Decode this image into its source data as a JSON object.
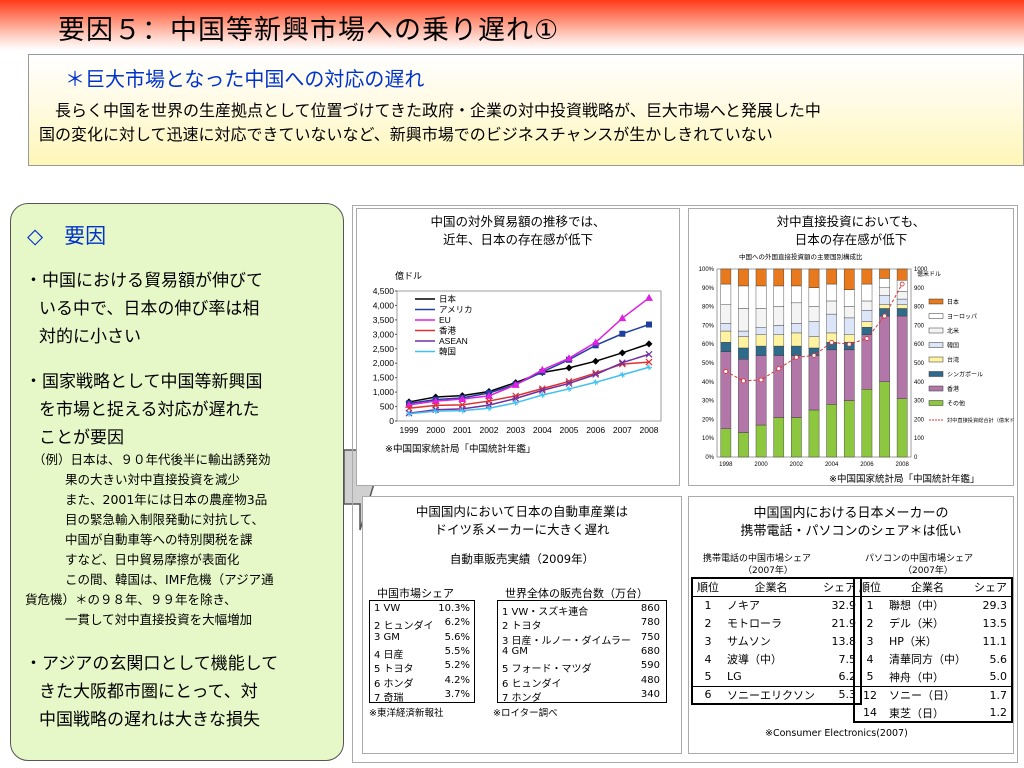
{
  "header": {
    "title": "要因５：中国等新興市場への乗り遅れ①"
  },
  "summary": {
    "heading": "＊巨大市場となった中国への対応の遅れ",
    "line1": "長らく中国を世界の生産拠点として位置づけてきた政府・企業の対中投資戦略が、巨大市場へと発展した中",
    "line2": "国の変化に対して迅速に対応できていないなど、新興市場でのビジネスチャンスが生かしきれていない"
  },
  "factors": {
    "heading": "◇　要因",
    "item1": [
      "・中国における貿易額が伸びて",
      "いる中で、日本の伸び率は相",
      "対的に小さい"
    ],
    "item2": [
      "・国家戦略として中国等新興国",
      "を市場と捉える対応が遅れた",
      "ことが要因"
    ],
    "example": [
      "（例）日本は、９０年代後半に輸出誘発効",
      "果の大きい対中直接投資を減少",
      "また、2001年には日本の農産物3品",
      "目の緊急輸入制限発動に対抗して、",
      "中国が自動車等への特別関税を課",
      "すなど、日中貿易摩擦が表面化",
      "この間、韓国は、IMF危機（アジア通",
      "貨危機）＊の９８年、９９年を除き、",
      "一貫して対中直接投資を大幅増加"
    ],
    "item3": [
      "・アジアの玄関口として機能して",
      "きた大阪都市圏にとって、対",
      "中国戦略の遅れは大きな損失"
    ]
  },
  "trade_panel": {
    "title1": "中国の対外貿易額の推移では、",
    "title2": "近年、日本の存在感が低下",
    "unit": "億ドル",
    "source": "※中国国家統計局「中国統計年鑑」"
  },
  "fdi_panel": {
    "title1": "対中直接投資においても、",
    "title2": "日本の存在感が低下",
    "subtitle": "中国への外国直接投資額の主要国別構成比",
    "right_unit": "億米ドル",
    "source": "※中国国家統計局「中国統計年鑑」"
  },
  "auto_panel": {
    "title1": "中国国内において日本の自動車産業は",
    "title2": "ドイツ系メーカーに大きく遅れ",
    "subtitle": "自動車販売実績（2009年）",
    "china_head": "中国市場シェア",
    "world_head": "世界全体の販売台数（万台）",
    "china_rows": [
      [
        "1 VW",
        "10.3%"
      ],
      [
        "2 ヒュンダイ",
        "6.2%"
      ],
      [
        "3 GM",
        "5.6%"
      ],
      [
        "4 日産",
        "5.5%"
      ],
      [
        "5 トヨタ",
        "5.2%"
      ],
      [
        "6 ホンダ",
        "4.2%"
      ],
      [
        "7 奇瑞",
        "3.7%"
      ]
    ],
    "world_rows": [
      [
        "1 VW・スズキ連合",
        "860"
      ],
      [
        "2 トヨタ",
        "780"
      ],
      [
        "3 日産・ルノー・ダイムラー",
        "750"
      ],
      [
        "4 GM",
        "680"
      ],
      [
        "5 フォード・マツダ",
        "590"
      ],
      [
        "6 ヒュンダイ",
        "480"
      ],
      [
        "7 ホンダ",
        "340"
      ]
    ],
    "source1": "※東洋経済新報社",
    "source2": "※ロイター調べ"
  },
  "share_panel": {
    "title1": "中国国内における日本メーカーの",
    "title2": "携帯電話・パソコンのシェア＊は低い",
    "phone_caption1": "携帯電話の中国市場シェア",
    "phone_caption2": "（2007年）",
    "pc_caption1": "パソコンの中国市場シェア",
    "pc_caption2": "（2007年）",
    "headers": [
      "順位",
      "企業名",
      "シェア"
    ],
    "phone_rows": [
      [
        "1",
        "ノキア",
        "32.9"
      ],
      [
        "2",
        "モトローラ",
        "21.9"
      ],
      [
        "3",
        "サムソン",
        "13.8"
      ],
      [
        "4",
        "波導（中）",
        "7.5"
      ],
      [
        "5",
        "LG",
        "6.2"
      ],
      [
        "6",
        "ソニーエリクソン",
        "5.3"
      ]
    ],
    "pc_rows": [
      [
        "1",
        "聯想（中）",
        "29.3"
      ],
      [
        "2",
        "デル（米）",
        "13.5"
      ],
      [
        "3",
        "HP（米）",
        "11.1"
      ],
      [
        "4",
        "清華同方（中）",
        "5.6"
      ],
      [
        "5",
        "神舟（中）",
        "5.0"
      ],
      [
        "12",
        "ソニー（日）",
        "1.7"
      ],
      [
        "14",
        "東芝（日）",
        "1.2"
      ]
    ],
    "source": "※Consumer Electronics(2007)"
  },
  "chart_data": [
    {
      "type": "line",
      "title": "中国の対外貿易額の推移では、近年、日本の存在感が低下",
      "ylabel": "億ドル",
      "ylim": [
        0,
        4500
      ],
      "yticks": [
        "0",
        "500",
        "1,000",
        "1,500",
        "2,000",
        "2,500",
        "3,000",
        "3,500",
        "4,000",
        "4,500"
      ],
      "x": [
        "1999",
        "2000",
        "2001",
        "2002",
        "2003",
        "2004",
        "2005",
        "2006",
        "2007",
        "2008"
      ],
      "series": [
        {
          "name": "日本",
          "color": "#000000",
          "marker": "diamond",
          "values": [
            660,
            830,
            880,
            1020,
            1330,
            1680,
            1840,
            2070,
            2360,
            2670
          ]
        },
        {
          "name": "アメリカ",
          "color": "#1f3f9f",
          "marker": "square",
          "values": [
            610,
            740,
            800,
            970,
            1260,
            1700,
            2120,
            2620,
            3020,
            3340
          ]
        },
        {
          "name": "EU",
          "color": "#e020e0",
          "marker": "triangle",
          "values": [
            560,
            690,
            760,
            870,
            1250,
            1770,
            2170,
            2720,
            3560,
            4260
          ]
        },
        {
          "name": "香港",
          "color": "#e03030",
          "marker": "x",
          "values": [
            440,
            540,
            560,
            690,
            870,
            1120,
            1370,
            1660,
            1970,
            2040
          ]
        },
        {
          "name": "ASEAN",
          "color": "#7030a0",
          "marker": "x",
          "values": [
            270,
            390,
            420,
            550,
            780,
            1060,
            1300,
            1610,
            2020,
            2310
          ]
        },
        {
          "name": "韓国",
          "color": "#40c0f0",
          "marker": "star",
          "values": [
            250,
            340,
            360,
            440,
            630,
            900,
            1110,
            1340,
            1600,
            1860
          ]
        }
      ],
      "legend": "top-left"
    },
    {
      "type": "bar",
      "stacked": true,
      "title": "対中直接投資においても、日本の存在感が低下",
      "subtitle": "中国への外国直接投資額の主要国別構成比",
      "x": [
        "1998",
        "1999",
        "2000",
        "2001",
        "2002",
        "2003",
        "2004",
        "2005",
        "2006",
        "2007",
        "2008"
      ],
      "xticks": [
        "1998",
        "2000",
        "2002",
        "2004",
        "2006",
        "2008"
      ],
      "yticks_left": [
        "0%",
        "10%",
        "20%",
        "30%",
        "40%",
        "50%",
        "60%",
        "70%",
        "80%",
        "90%",
        "100%"
      ],
      "yticks_right": [
        "0",
        "100",
        "200",
        "300",
        "400",
        "500",
        "600",
        "700",
        "800",
        "900",
        "1000"
      ],
      "right_ylim": [
        0,
        1000
      ],
      "series": [
        {
          "name": "その他",
          "color": "#8dc63f",
          "values": [
            15,
            13,
            17,
            21,
            21,
            25,
            28,
            30,
            36,
            40,
            31
          ]
        },
        {
          "name": "香港",
          "color": "#b276a8",
          "values": [
            41,
            39,
            37,
            33,
            33,
            29,
            29,
            27,
            29,
            35,
            44
          ]
        },
        {
          "name": "シンガポール",
          "color": "#2e6b8a",
          "values": [
            5,
            6,
            5,
            5,
            5,
            4,
            4,
            4,
            4,
            4,
            4
          ]
        },
        {
          "name": "台湾",
          "color": "#fff2a0",
          "values": [
            6,
            6,
            6,
            6,
            7,
            6,
            5,
            4,
            3,
            2,
            2
          ]
        },
        {
          "name": "韓国",
          "color": "#dde6f8",
          "values": [
            4,
            3,
            4,
            5,
            5,
            8,
            10,
            9,
            6,
            5,
            3
          ]
        },
        {
          "name": "北米",
          "color": "#f4f4f4",
          "values": [
            10,
            12,
            10,
            10,
            11,
            8,
            7,
            6,
            5,
            4,
            4
          ]
        },
        {
          "name": "ヨーロッパ",
          "color": "#ffffff",
          "values": [
            11,
            12,
            12,
            11,
            9,
            10,
            9,
            9,
            9,
            5,
            6
          ]
        },
        {
          "name": "日本",
          "color": "#e8791c",
          "values": [
            8,
            9,
            9,
            9,
            9,
            10,
            8,
            11,
            8,
            5,
            6
          ]
        }
      ],
      "line": {
        "name": "対中直接投資総合計（億米ドル、右目盛）",
        "color": "#e03030",
        "values": [
          455,
          405,
          410,
          470,
          530,
          540,
          610,
          600,
          630,
          750,
          920
        ]
      },
      "legend": "right"
    }
  ]
}
